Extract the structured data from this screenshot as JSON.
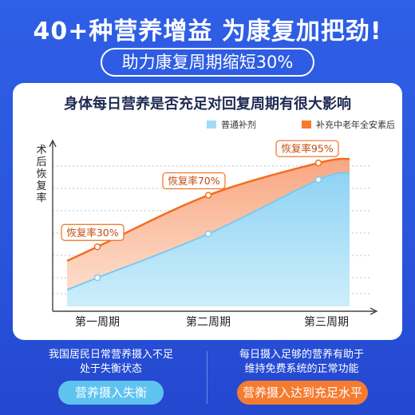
{
  "headline": "40+种营养增益 为康复加把劲!",
  "subheadline": "助力康复周期缩短30%",
  "colors": {
    "background": "#2a55de",
    "blue_series": "#5fc3f0",
    "orange_series": "#f57b30"
  },
  "chart_data": {
    "type": "area",
    "title": "身体每日营养是否充足对回复周期有很大影响",
    "xlabel": "",
    "ylabel": "术后恢复率",
    "categories": [
      "第一周期",
      "第二周期",
      "第三周期"
    ],
    "series": [
      {
        "name": "普通补剂",
        "color": "#5fc3f0",
        "values": [
          6,
          40,
          82
        ]
      },
      {
        "name": "补充中老年全安素后",
        "color": "#f57b30",
        "values": [
          30,
          70,
          95
        ]
      }
    ],
    "point_labels": {
      "series": 1,
      "labels": [
        "恢复率30%",
        "恢复率70%",
        "恢复率95%"
      ]
    },
    "ylim": [
      -15,
      105
    ],
    "grid": true,
    "legend": "top-right"
  },
  "bottom": {
    "left_text": "我国居民日常营养摄入不足\n处于失衡状态",
    "left_pill": "营养摄入失衡",
    "right_text": "每日摄入足够的营养有助于\n维持免费系统的正常功能",
    "right_pill": "营养摄入达到充足水平"
  }
}
